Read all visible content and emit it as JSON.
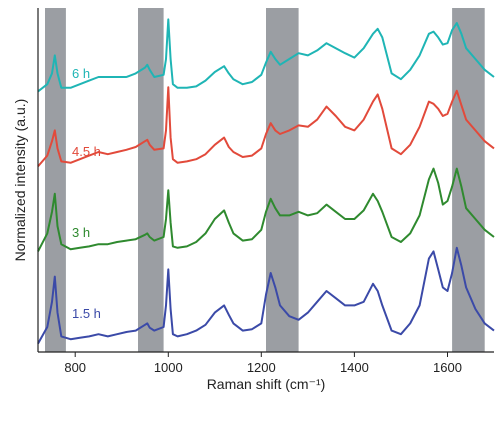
{
  "chart_data": {
    "type": "line",
    "title": "",
    "xlabel": "Raman shift (cm⁻¹)",
    "ylabel": "Normalized intensity (a.u.)",
    "xlim": [
      720,
      1700
    ],
    "x_ticks": [
      800,
      1000,
      1200,
      1400,
      1600
    ],
    "y_ticks": [],
    "grid": false,
    "legend": "none",
    "y_units": "arbitrary, vertically offset traces",
    "highlight_bands": [
      [
        735,
        780
      ],
      [
        935,
        990
      ],
      [
        1210,
        1280
      ],
      [
        1610,
        1680
      ]
    ],
    "highlight_color": "#9b9ea3",
    "series": [
      {
        "name": "6 h",
        "color": "#1fb5b5",
        "offset": 3,
        "x": [
          720,
          740,
          750,
          756,
          762,
          770,
          790,
          810,
          830,
          850,
          870,
          890,
          910,
          930,
          950,
          955,
          960,
          970,
          990,
          995,
          1000,
          1005,
          1010,
          1020,
          1040,
          1060,
          1080,
          1100,
          1120,
          1130,
          1140,
          1160,
          1180,
          1200,
          1210,
          1220,
          1230,
          1240,
          1260,
          1280,
          1300,
          1320,
          1340,
          1360,
          1380,
          1400,
          1420,
          1440,
          1450,
          1460,
          1480,
          1500,
          1520,
          1540,
          1560,
          1570,
          1580,
          1590,
          1600,
          1610,
          1620,
          1630,
          1640,
          1660,
          1680,
          1700
        ],
        "y": [
          0.05,
          0.15,
          0.3,
          0.55,
          0.3,
          0.1,
          0.1,
          0.15,
          0.2,
          0.25,
          0.25,
          0.25,
          0.25,
          0.3,
          0.38,
          0.42,
          0.35,
          0.25,
          0.28,
          0.5,
          1.05,
          0.5,
          0.15,
          0.1,
          0.1,
          0.12,
          0.2,
          0.32,
          0.4,
          0.3,
          0.22,
          0.15,
          0.18,
          0.28,
          0.45,
          0.6,
          0.5,
          0.42,
          0.5,
          0.58,
          0.55,
          0.62,
          0.72,
          0.65,
          0.58,
          0.52,
          0.65,
          0.85,
          0.92,
          0.8,
          0.3,
          0.22,
          0.35,
          0.55,
          0.85,
          0.88,
          0.8,
          0.7,
          0.72,
          0.9,
          1.0,
          0.85,
          0.65,
          0.5,
          0.35,
          0.25
        ]
      },
      {
        "name": "4.5 h",
        "color": "#e24a3b",
        "offset": 2,
        "x": [
          720,
          740,
          750,
          756,
          762,
          770,
          790,
          810,
          830,
          850,
          870,
          890,
          910,
          930,
          950,
          955,
          960,
          970,
          990,
          995,
          1000,
          1005,
          1010,
          1020,
          1040,
          1060,
          1080,
          1100,
          1120,
          1130,
          1140,
          1160,
          1180,
          1200,
          1210,
          1220,
          1230,
          1240,
          1260,
          1280,
          1300,
          1320,
          1340,
          1360,
          1380,
          1400,
          1420,
          1440,
          1450,
          1460,
          1480,
          1500,
          1520,
          1540,
          1560,
          1570,
          1580,
          1590,
          1600,
          1610,
          1620,
          1630,
          1640,
          1660,
          1680,
          1700
        ],
        "y": [
          0.05,
          0.2,
          0.4,
          0.55,
          0.3,
          0.12,
          0.1,
          0.15,
          0.2,
          0.25,
          0.22,
          0.25,
          0.28,
          0.32,
          0.4,
          0.42,
          0.35,
          0.28,
          0.3,
          0.55,
          1.15,
          0.45,
          0.15,
          0.1,
          0.12,
          0.15,
          0.22,
          0.35,
          0.45,
          0.32,
          0.25,
          0.18,
          0.2,
          0.3,
          0.5,
          0.65,
          0.55,
          0.5,
          0.55,
          0.62,
          0.6,
          0.7,
          0.88,
          0.75,
          0.6,
          0.55,
          0.7,
          0.95,
          1.05,
          0.85,
          0.3,
          0.22,
          0.35,
          0.6,
          0.95,
          0.92,
          0.85,
          0.75,
          0.78,
          0.95,
          1.1,
          0.9,
          0.7,
          0.55,
          0.4,
          0.3
        ]
      },
      {
        "name": "3 h",
        "color": "#2f8a2f",
        "offset": 1,
        "x": [
          720,
          740,
          750,
          756,
          762,
          770,
          790,
          810,
          830,
          850,
          870,
          890,
          910,
          930,
          950,
          955,
          960,
          970,
          990,
          995,
          1000,
          1005,
          1010,
          1020,
          1040,
          1060,
          1080,
          1100,
          1120,
          1130,
          1140,
          1160,
          1180,
          1200,
          1210,
          1220,
          1230,
          1240,
          1260,
          1280,
          1300,
          1320,
          1340,
          1360,
          1380,
          1400,
          1420,
          1440,
          1450,
          1460,
          1480,
          1500,
          1520,
          1540,
          1560,
          1570,
          1580,
          1590,
          1600,
          1610,
          1620,
          1630,
          1640,
          1660,
          1680,
          1700
        ],
        "y": [
          0.05,
          0.3,
          0.6,
          0.85,
          0.4,
          0.15,
          0.08,
          0.1,
          0.12,
          0.15,
          0.15,
          0.18,
          0.2,
          0.22,
          0.28,
          0.3,
          0.25,
          0.2,
          0.25,
          0.5,
          0.9,
          0.45,
          0.12,
          0.1,
          0.12,
          0.18,
          0.3,
          0.5,
          0.62,
          0.45,
          0.3,
          0.2,
          0.22,
          0.35,
          0.6,
          0.78,
          0.65,
          0.55,
          0.55,
          0.6,
          0.55,
          0.58,
          0.7,
          0.6,
          0.5,
          0.5,
          0.62,
          0.85,
          0.75,
          0.6,
          0.25,
          0.18,
          0.3,
          0.55,
          1.05,
          1.2,
          1.0,
          0.7,
          0.75,
          0.95,
          1.2,
          0.95,
          0.65,
          0.5,
          0.35,
          0.25
        ]
      },
      {
        "name": "1.5 h",
        "color": "#3b4aa8",
        "offset": 0,
        "x": [
          720,
          740,
          750,
          756,
          762,
          770,
          790,
          810,
          830,
          850,
          870,
          890,
          910,
          930,
          950,
          955,
          960,
          970,
          990,
          995,
          1000,
          1005,
          1010,
          1020,
          1040,
          1060,
          1080,
          1100,
          1120,
          1130,
          1140,
          1160,
          1180,
          1200,
          1210,
          1220,
          1230,
          1240,
          1260,
          1280,
          1300,
          1320,
          1340,
          1360,
          1380,
          1400,
          1420,
          1440,
          1450,
          1460,
          1480,
          1500,
          1520,
          1540,
          1560,
          1570,
          1580,
          1590,
          1600,
          1610,
          1620,
          1630,
          1640,
          1660,
          1680,
          1700
        ],
        "y": [
          0.02,
          0.25,
          0.6,
          0.95,
          0.45,
          0.12,
          0.08,
          0.1,
          0.12,
          0.15,
          0.12,
          0.15,
          0.18,
          0.2,
          0.28,
          0.3,
          0.24,
          0.2,
          0.25,
          0.55,
          1.05,
          0.5,
          0.15,
          0.12,
          0.15,
          0.2,
          0.28,
          0.45,
          0.55,
          0.42,
          0.3,
          0.2,
          0.22,
          0.3,
          0.7,
          1.0,
          0.8,
          0.55,
          0.4,
          0.35,
          0.45,
          0.6,
          0.75,
          0.65,
          0.55,
          0.55,
          0.6,
          0.85,
          0.75,
          0.55,
          0.2,
          0.15,
          0.3,
          0.55,
          1.2,
          1.3,
          1.05,
          0.8,
          0.75,
          1.0,
          1.35,
          1.1,
          0.8,
          0.5,
          0.3,
          0.2
        ]
      }
    ]
  }
}
